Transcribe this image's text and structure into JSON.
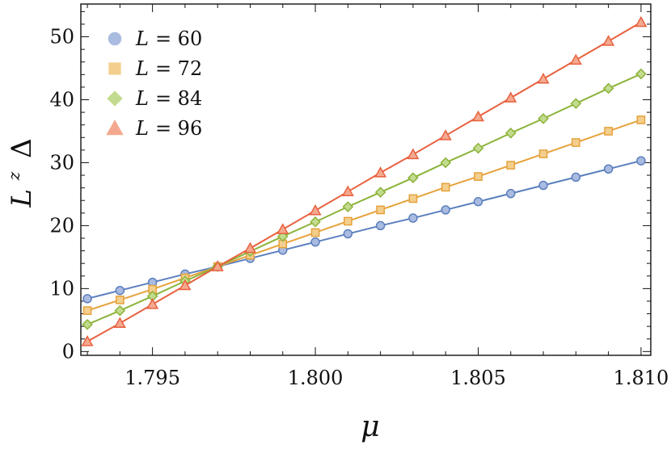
{
  "chart_data": {
    "type": "line",
    "xlabel": "μ",
    "ylabel_base": "L",
    "ylabel_exponent": "z",
    "ylabel_suffix": "Δ",
    "xlim": [
      1.7928,
      1.8103
    ],
    "ylim": [
      -0.6,
      55.2
    ],
    "x_ticks": [
      1.795,
      1.8,
      1.805,
      1.81
    ],
    "x_tick_labels": [
      "1.795",
      "1.800",
      "1.805",
      "1.810"
    ],
    "y_ticks": [
      0,
      10,
      20,
      30,
      40,
      50
    ],
    "y_tick_labels": [
      "0",
      "10",
      "20",
      "30",
      "40",
      "50"
    ],
    "grid": false,
    "legend_position": "top-left",
    "x": [
      1.793,
      1.794,
      1.795,
      1.796,
      1.797,
      1.798,
      1.799,
      1.8,
      1.801,
      1.802,
      1.803,
      1.804,
      1.805,
      1.806,
      1.807,
      1.808,
      1.809,
      1.81
    ],
    "series": [
      {
        "name": "L = 60",
        "legend_var": "L",
        "legend_eq": "= 60",
        "marker": "circle",
        "color": "#5b7fbf",
        "light_color": "#aabbe0",
        "values": [
          8.4,
          9.7,
          11.0,
          12.3,
          13.5,
          14.8,
          16.1,
          17.4,
          18.7,
          20.0,
          21.2,
          22.5,
          23.8,
          25.1,
          26.4,
          27.7,
          29.0,
          30.3
        ]
      },
      {
        "name": "L = 72",
        "legend_var": "L",
        "legend_eq": "= 72",
        "marker": "square",
        "color": "#e6a23c",
        "light_color": "#f3cf8e",
        "values": [
          6.5,
          8.2,
          9.9,
          11.7,
          13.5,
          15.3,
          17.1,
          18.9,
          20.7,
          22.5,
          24.3,
          26.1,
          27.8,
          29.6,
          31.4,
          33.2,
          35.0,
          36.8
        ]
      },
      {
        "name": "L = 84",
        "legend_var": "L",
        "legend_eq": "= 84",
        "marker": "diamond",
        "color": "#8cb33a",
        "light_color": "#c3db8e",
        "values": [
          4.3,
          6.5,
          8.8,
          11.2,
          13.5,
          15.9,
          18.3,
          20.6,
          23.0,
          25.3,
          27.6,
          30.0,
          32.3,
          34.7,
          37.0,
          39.4,
          41.8,
          44.1
        ]
      },
      {
        "name": "L = 96",
        "legend_var": "L",
        "legend_eq": "= 96",
        "marker": "triangle",
        "color": "#e8613e",
        "light_color": "#f4a98f",
        "values": [
          1.6,
          4.5,
          7.5,
          10.5,
          13.5,
          16.4,
          19.4,
          22.4,
          25.4,
          28.4,
          31.3,
          34.3,
          37.3,
          40.3,
          43.3,
          46.3,
          49.3,
          52.3
        ]
      }
    ]
  }
}
